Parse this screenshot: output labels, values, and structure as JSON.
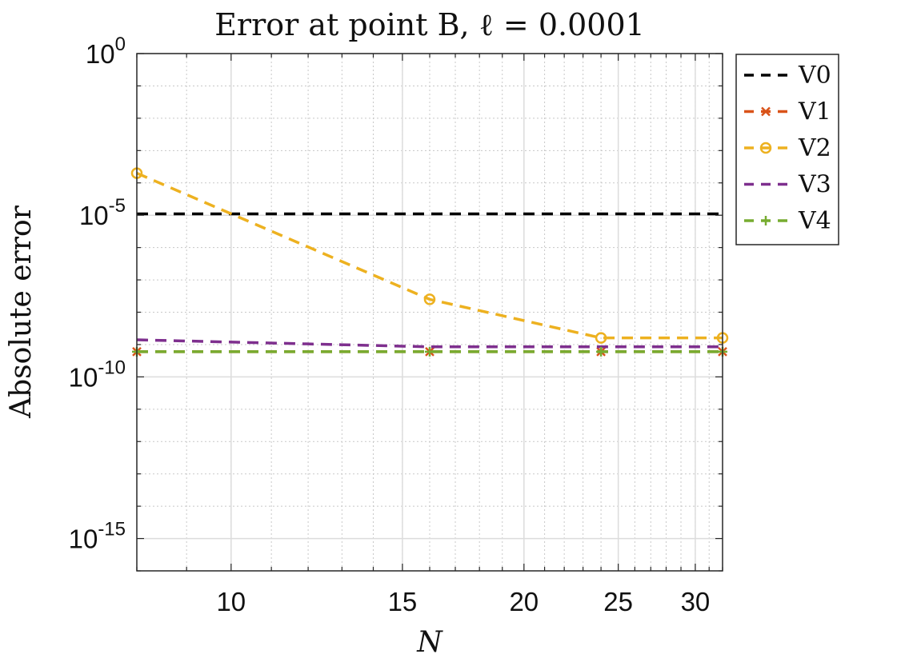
{
  "chart_data": {
    "type": "line",
    "title": "Error at point B, ℓ = 0.0001",
    "xlabel": "N",
    "ylabel": "Absolute error",
    "x_scale": "log",
    "y_scale": "log",
    "xlim": [
      8,
      32
    ],
    "ylim": [
      1e-16,
      1
    ],
    "x_ticks": [
      {
        "value": 10,
        "label": "10"
      },
      {
        "value": 15,
        "label": "15"
      },
      {
        "value": 20,
        "label": "20"
      },
      {
        "value": 25,
        "label": "25"
      },
      {
        "value": 30,
        "label": "30"
      }
    ],
    "y_ticks": [
      {
        "value": 1,
        "base": "10",
        "exp": "0"
      },
      {
        "value": 1e-05,
        "base": "10",
        "exp": "-5"
      },
      {
        "value": 1e-10,
        "base": "10",
        "exp": "-10"
      },
      {
        "value": 1e-15,
        "base": "10",
        "exp": "-15"
      }
    ],
    "grid": true,
    "minor_grid": true,
    "legend_position": "outside-right-top",
    "series": [
      {
        "name": "V0",
        "color": "#000000",
        "marker": "none",
        "x": [
          8,
          32
        ],
        "y": [
          1.1e-05,
          1.1e-05
        ]
      },
      {
        "name": "V1",
        "color": "#d95319",
        "marker": "x",
        "x": [
          8,
          16,
          24,
          32
        ],
        "y": [
          6e-10,
          6e-10,
          6e-10,
          6e-10
        ]
      },
      {
        "name": "V2",
        "color": "#edb120",
        "marker": "o",
        "x": [
          8,
          16,
          24,
          32
        ],
        "y": [
          0.0002,
          2.5e-08,
          1.6e-09,
          1.6e-09
        ]
      },
      {
        "name": "V3",
        "color": "#7e2f8e",
        "marker": "none",
        "x": [
          8,
          16,
          24,
          32
        ],
        "y": [
          1.4e-09,
          8.5e-10,
          8.5e-10,
          8.5e-10
        ]
      },
      {
        "name": "V4",
        "color": "#77ac30",
        "marker": "+",
        "x": [
          8,
          16,
          24,
          32
        ],
        "y": [
          6e-10,
          6e-10,
          6e-10,
          6e-10
        ]
      }
    ]
  }
}
